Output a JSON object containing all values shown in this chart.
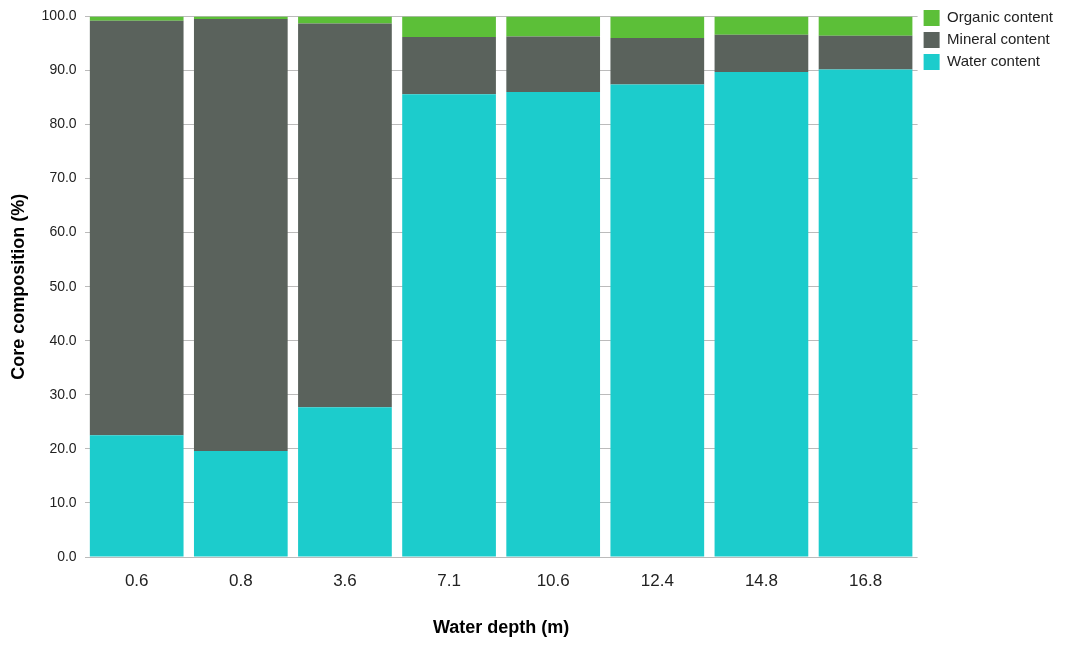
{
  "chart_data": {
    "type": "bar",
    "stacked": true,
    "xlabel": "Water depth (m)",
    "ylabel": "Core composition (%)",
    "categories": [
      "0.6",
      "0.8",
      "3.6",
      "7.1",
      "10.6",
      "12.4",
      "14.8",
      "16.8"
    ],
    "series": [
      {
        "name": "Water content",
        "color": "#1ccccc",
        "values": [
          22.5,
          19.6,
          27.7,
          85.6,
          86.0,
          87.4,
          89.7,
          90.2
        ]
      },
      {
        "name": "Mineral content",
        "color": "#5a625c",
        "values": [
          76.7,
          79.9,
          71.0,
          10.6,
          10.3,
          8.6,
          6.9,
          6.2
        ]
      },
      {
        "name": "Organic content",
        "color": "#5cbf38",
        "values": [
          0.8,
          0.5,
          1.3,
          3.8,
          3.7,
          4.0,
          3.4,
          3.6
        ]
      }
    ],
    "ylim": [
      0,
      100
    ],
    "yticks": [
      {
        "value": 0,
        "label": "0.0"
      },
      {
        "value": 10,
        "label": "10.0"
      },
      {
        "value": 20,
        "label": "20.0"
      },
      {
        "value": 30,
        "label": "30.0"
      },
      {
        "value": 40,
        "label": "40.0"
      },
      {
        "value": 50,
        "label": "50.0"
      },
      {
        "value": 60,
        "label": "60.0"
      },
      {
        "value": 70,
        "label": "70.0"
      },
      {
        "value": 80,
        "label": "80.0"
      },
      {
        "value": 90,
        "label": "90.0"
      },
      {
        "value": 100,
        "label": "100.0"
      }
    ],
    "grid": "y",
    "legend": "top right"
  }
}
